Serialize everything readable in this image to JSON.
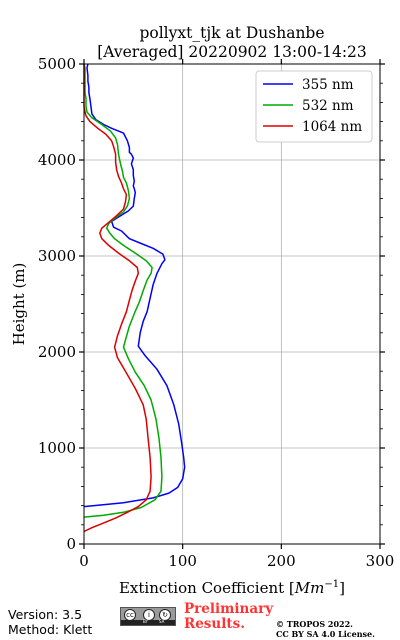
{
  "chart_data": {
    "type": "line",
    "title_line1": "pollyxt_tjk at Dushanbe",
    "title_line2": "[Averaged] 20220902 13:00-14:23",
    "xlabel": "Extinction Coefficient [",
    "xlabel_unit": "Mm",
    "xlabel_exp": "−1",
    "xlabel_close": "]",
    "ylabel": "Height (m)",
    "xlim": [
      0,
      300
    ],
    "ylim": [
      0,
      5000
    ],
    "xticks": [
      "0",
      "100",
      "200",
      "300"
    ],
    "yticks": [
      "0",
      "1000",
      "2000",
      "3000",
      "4000",
      "5000"
    ],
    "grid": true,
    "legend_position": "top-right",
    "series": [
      {
        "name": "355 nm",
        "color": "#0000ff",
        "points": [
          [
            0,
            390
          ],
          [
            40,
            430
          ],
          [
            70,
            480
          ],
          [
            86,
            530
          ],
          [
            95,
            590
          ],
          [
            100,
            680
          ],
          [
            102,
            800
          ],
          [
            101,
            900
          ],
          [
            99,
            1050
          ],
          [
            96,
            1250
          ],
          [
            91,
            1450
          ],
          [
            84,
            1650
          ],
          [
            74,
            1820
          ],
          [
            62,
            1960
          ],
          [
            55,
            2060
          ],
          [
            57,
            2200
          ],
          [
            60,
            2320
          ],
          [
            64,
            2420
          ],
          [
            67,
            2560
          ],
          [
            70,
            2700
          ],
          [
            74,
            2820
          ],
          [
            79,
            2920
          ],
          [
            82,
            2960
          ],
          [
            80,
            3020
          ],
          [
            70,
            3080
          ],
          [
            58,
            3130
          ],
          [
            46,
            3180
          ],
          [
            38,
            3260
          ],
          [
            30,
            3300
          ],
          [
            28,
            3360
          ],
          [
            34,
            3400
          ],
          [
            45,
            3470
          ],
          [
            50,
            3520
          ],
          [
            51,
            3600
          ],
          [
            52,
            3660
          ],
          [
            51,
            3700
          ],
          [
            50,
            3730
          ],
          [
            51,
            3780
          ],
          [
            50,
            3840
          ],
          [
            50,
            3900
          ],
          [
            48,
            3960
          ],
          [
            50,
            4020
          ],
          [
            48,
            4060
          ],
          [
            46,
            4080
          ],
          [
            46,
            4130
          ],
          [
            44,
            4200
          ],
          [
            40,
            4280
          ],
          [
            28,
            4330
          ],
          [
            20,
            4370
          ],
          [
            12,
            4420
          ],
          [
            8,
            4480
          ],
          [
            7,
            4560
          ],
          [
            6,
            4640
          ],
          [
            5,
            4700
          ],
          [
            5,
            4760
          ],
          [
            4,
            4820
          ],
          [
            4,
            4880
          ],
          [
            3,
            4960
          ],
          [
            4,
            5000
          ]
        ]
      },
      {
        "name": "532 nm",
        "color": "#00aa00",
        "points": [
          [
            0,
            280
          ],
          [
            20,
            300
          ],
          [
            40,
            330
          ],
          [
            58,
            380
          ],
          [
            72,
            460
          ],
          [
            78,
            550
          ],
          [
            79,
            700
          ],
          [
            78,
            900
          ],
          [
            76,
            1100
          ],
          [
            73,
            1300
          ],
          [
            68,
            1500
          ],
          [
            61,
            1650
          ],
          [
            52,
            1790
          ],
          [
            45,
            1930
          ],
          [
            40,
            2050
          ],
          [
            43,
            2160
          ],
          [
            46,
            2270
          ],
          [
            51,
            2400
          ],
          [
            56,
            2520
          ],
          [
            60,
            2640
          ],
          [
            64,
            2750
          ],
          [
            68,
            2820
          ],
          [
            69,
            2880
          ],
          [
            63,
            2950
          ],
          [
            52,
            3030
          ],
          [
            40,
            3110
          ],
          [
            31,
            3180
          ],
          [
            26,
            3240
          ],
          [
            23,
            3290
          ],
          [
            25,
            3340
          ],
          [
            32,
            3400
          ],
          [
            40,
            3460
          ],
          [
            44,
            3520
          ],
          [
            46,
            3600
          ],
          [
            45,
            3680
          ],
          [
            43,
            3760
          ],
          [
            40,
            3820
          ],
          [
            39,
            3880
          ],
          [
            37,
            3960
          ],
          [
            35,
            4060
          ],
          [
            34,
            4160
          ],
          [
            32,
            4230
          ],
          [
            27,
            4300
          ],
          [
            18,
            4370
          ],
          [
            8,
            4440
          ],
          [
            3,
            4500
          ],
          [
            2,
            4560
          ],
          [
            2,
            4640
          ],
          [
            1,
            4700
          ],
          [
            1,
            4800
          ],
          [
            1,
            4880
          ],
          [
            1,
            4960
          ],
          [
            0,
            5000
          ]
        ]
      },
      {
        "name": "1064 nm",
        "color": "#dd0000",
        "points": [
          [
            0,
            130
          ],
          [
            8,
            170
          ],
          [
            20,
            220
          ],
          [
            32,
            270
          ],
          [
            44,
            330
          ],
          [
            55,
            390
          ],
          [
            63,
            460
          ],
          [
            67,
            550
          ],
          [
            68,
            700
          ],
          [
            67,
            900
          ],
          [
            65,
            1100
          ],
          [
            63,
            1300
          ],
          [
            60,
            1450
          ],
          [
            52,
            1620
          ],
          [
            42,
            1800
          ],
          [
            34,
            1940
          ],
          [
            31,
            2050
          ],
          [
            34,
            2170
          ],
          [
            38,
            2290
          ],
          [
            43,
            2420
          ],
          [
            46,
            2540
          ],
          [
            49,
            2650
          ],
          [
            52,
            2740
          ],
          [
            55,
            2820
          ],
          [
            54,
            2880
          ],
          [
            46,
            2950
          ],
          [
            35,
            3030
          ],
          [
            25,
            3110
          ],
          [
            18,
            3180
          ],
          [
            16,
            3240
          ],
          [
            18,
            3290
          ],
          [
            25,
            3350
          ],
          [
            33,
            3420
          ],
          [
            40,
            3490
          ],
          [
            42,
            3560
          ],
          [
            43,
            3640
          ],
          [
            40,
            3700
          ],
          [
            38,
            3760
          ],
          [
            35,
            3830
          ],
          [
            33,
            3900
          ],
          [
            32,
            3980
          ],
          [
            32,
            4060
          ],
          [
            30,
            4140
          ],
          [
            28,
            4200
          ],
          [
            22,
            4270
          ],
          [
            14,
            4330
          ],
          [
            6,
            4400
          ],
          [
            2,
            4460
          ],
          [
            1,
            4500
          ],
          [
            0,
            4560
          ],
          [
            0,
            4700
          ],
          [
            0,
            4800
          ],
          [
            0,
            4900
          ],
          [
            0,
            5000
          ]
        ]
      }
    ]
  },
  "footer": {
    "version": "Version: 3.5",
    "method": "Method: Klett",
    "badge_by": "BY",
    "badge_sa": "SA",
    "prelim_line1": "Preliminary",
    "prelim_line2": "Results.",
    "copyright_line1": "© TROPOS 2022.",
    "copyright_line2": "CC BY SA 4.0 License."
  }
}
